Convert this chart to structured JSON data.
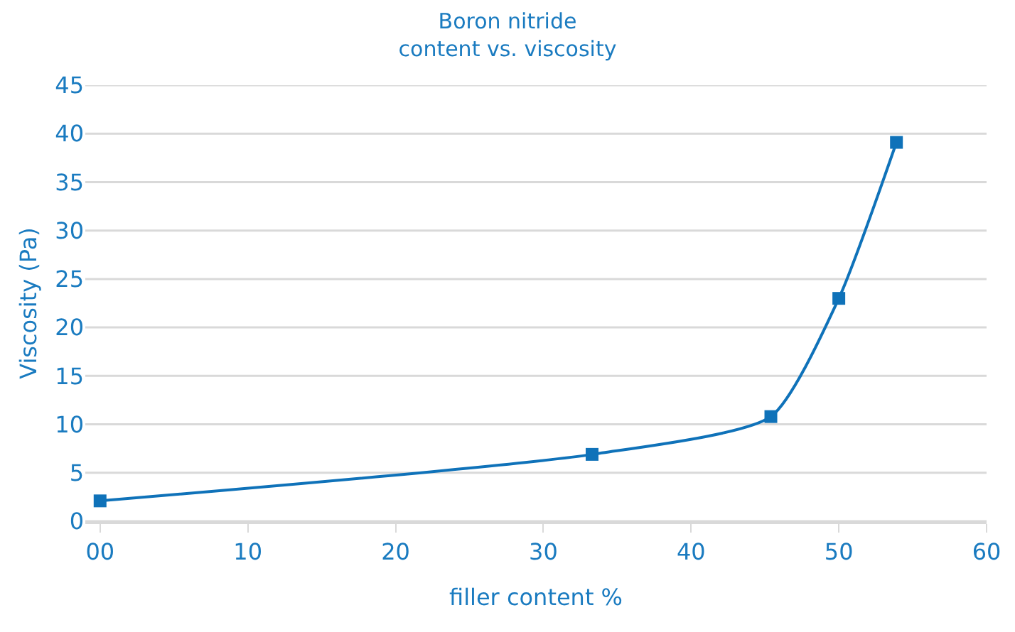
{
  "chart_data": {
    "type": "line",
    "title": "Boron nitride\ncontent vs. viscosity",
    "xlabel": "filler content %",
    "ylabel": "Viscosity (Pa)",
    "x": [
      0,
      33.3,
      45.4,
      50,
      53.9
    ],
    "series": [
      {
        "color": "#0f72b9",
        "values": [
          2.1,
          6.9,
          10.8,
          23,
          39.1
        ]
      }
    ],
    "xlim": [
      -1,
      60
    ],
    "xticks": [
      {
        "value": 0,
        "label": "00"
      },
      10,
      20,
      30,
      40,
      50,
      60
    ],
    "ylim": [
      0,
      45
    ],
    "yticks": [
      0,
      5,
      10,
      15,
      20,
      25,
      30,
      35,
      40,
      45
    ],
    "grid": "y",
    "marker": "square",
    "line_style": "solid",
    "legend": false
  }
}
